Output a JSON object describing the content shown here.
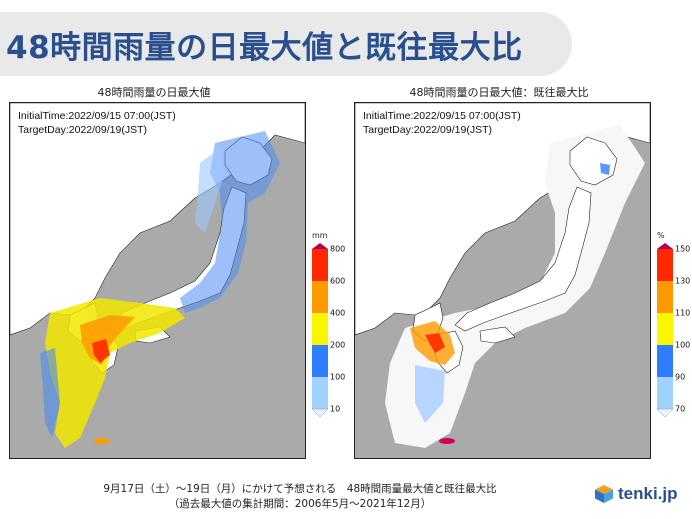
{
  "header": {
    "title": "48時間雨量の日最大値と既往最大比"
  },
  "left_panel": {
    "title": "48時間雨量の日最大値",
    "initial_time": "InitialTime:2022/09/15 07:00(JST)",
    "target_day": "TargetDay:2022/09/19(JST)",
    "legend": {
      "unit": "mm",
      "ticks": [
        "800",
        "600",
        "400",
        "200",
        "100",
        "10"
      ],
      "colors": [
        "#b4005c",
        "#ff2800",
        "#ff9900",
        "#faf500",
        "#2f7cff",
        "#a0d2ff",
        "#e8f4ff"
      ]
    }
  },
  "right_panel": {
    "title": "48時間雨量の日最大値：既往最大比",
    "initial_time": "InitialTime:2022/09/15 07:00(JST)",
    "target_day": "TargetDay:2022/09/19(JST)",
    "legend": {
      "unit": "%",
      "ticks": [
        "150",
        "130",
        "110",
        "100",
        "90",
        "70"
      ],
      "colors": [
        "#b4005c",
        "#ff2800",
        "#ff9900",
        "#faf500",
        "#2f7cff",
        "#a0d2ff",
        "#e8f4ff"
      ]
    }
  },
  "caption": {
    "line1": "9月17日（土）～19日（月）にかけて予想される　48時間雨量最大値と既往最大比",
    "line2": "（過去最大値の集計期間：2006年5月～2021年12月）"
  },
  "logo": {
    "text": "tenki.jp",
    "icon": "tenki-cube-icon"
  }
}
